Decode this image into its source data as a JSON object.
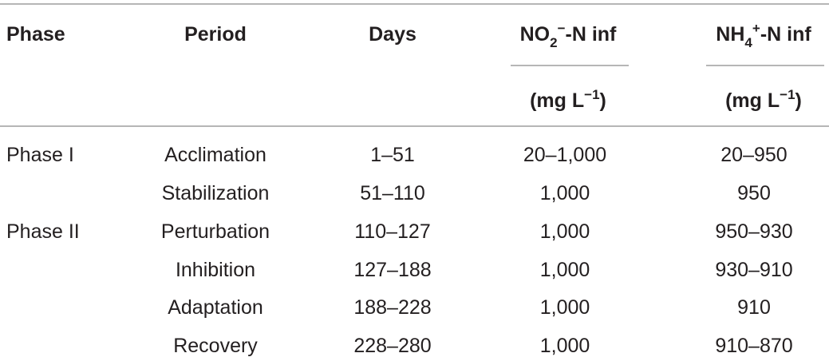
{
  "table": {
    "header": {
      "phase": "Phase",
      "period": "Period",
      "days": "Days",
      "no2": {
        "base": "NO",
        "sub": "2",
        "sup": "−",
        "suffix": "-N inf",
        "unit": "(mg L",
        "unit_sup": "−1",
        "unit_end": ")"
      },
      "nh4": {
        "base": "NH",
        "sub": "4",
        "sup": "+",
        "suffix": "-N inf",
        "unit": "(mg L",
        "unit_sup": "−1",
        "unit_end": ")"
      }
    },
    "rows": [
      [
        "Phase I",
        "Acclimation",
        "1–51",
        "20–1,000",
        "20–950"
      ],
      [
        null,
        "Stabilization",
        "51–110",
        "1,000",
        "950"
      ],
      [
        "Phase II",
        "Perturbation",
        "110–127",
        "1,000",
        "950–930"
      ],
      [
        null,
        "Inhibition",
        "127–188",
        "1,000",
        "930–910"
      ],
      [
        null,
        "Adaptation",
        "188–228",
        "1,000",
        "910"
      ],
      [
        null,
        "Recovery",
        "228–280",
        "1,000",
        "910–870"
      ]
    ]
  }
}
